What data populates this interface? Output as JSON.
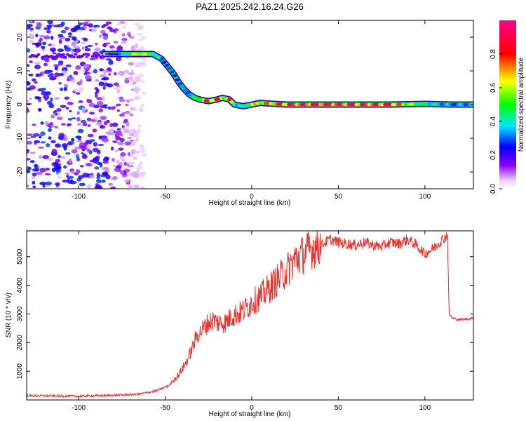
{
  "title": "PAZ1.2025.242.16.24.G26",
  "colors": {
    "snr_line": "#e8332f",
    "frame": "#000000",
    "background": "#ffffff"
  },
  "chart_data": [
    {
      "type": "heatmap",
      "name": "spectrogram",
      "xlabel": "Height of straight line (km)",
      "ylabel": "Frequency (Hz)",
      "xlim": [
        -130,
        128
      ],
      "ylim": [
        -25,
        25
      ],
      "xticks": [
        -100,
        -50,
        0,
        50,
        100
      ],
      "xtick_labels": [
        "-100",
        "-50",
        "0",
        "50",
        "100"
      ],
      "yticks": [
        -20,
        -10,
        0,
        10,
        20
      ],
      "ytick_labels": [
        "-20",
        "-10",
        "0",
        "10",
        "20"
      ],
      "colorbar": {
        "label": "Normalized spectral amplitude",
        "range": [
          0,
          1
        ],
        "ticks": [
          0.0,
          0.2,
          0.4,
          0.6,
          0.8
        ],
        "tick_labels": [
          "0.0",
          "0.2",
          "0.4",
          "0.6",
          "0.8"
        ],
        "colormap": "rainbow (magenta-blue-cyan-green-yellow-red-pink)"
      },
      "ridge": {
        "description": "dominant frequency ridge vs height",
        "x": [
          -85,
          -75,
          -65,
          -57,
          -52,
          -48,
          -45,
          -42,
          -39,
          -36,
          -33,
          -30,
          -25,
          -20,
          -17,
          -13,
          -10,
          -5,
          0,
          5,
          10,
          20,
          40,
          60,
          80,
          100,
          115,
          128
        ],
        "y": [
          15,
          15,
          15,
          15,
          13.5,
          11,
          9,
          6.5,
          4.5,
          3,
          2,
          1.5,
          1,
          1.5,
          2,
          1.5,
          0,
          -0.5,
          0,
          0.5,
          0.3,
          0,
          0,
          0,
          0,
          0.2,
          0,
          0
        ],
        "amplitude": [
          0.1,
          0.35,
          0.8,
          0.5,
          0.35,
          0.3,
          0.3,
          0.3,
          0.35,
          0.4,
          0.5,
          0.7,
          0.85,
          0.9,
          0.7,
          0.85,
          0.5,
          0.4,
          0.7,
          0.75,
          0.8,
          0.9,
          0.95,
          0.9,
          0.9,
          0.5,
          0.35,
          0.4
        ]
      },
      "noise_region": {
        "x_range": [
          -130,
          -70
        ],
        "y_range": [
          -25,
          25
        ],
        "amplitude_range": [
          0.05,
          0.3
        ],
        "note": "scattered low-amplitude blobs, with a persistent line near 14 Hz"
      }
    },
    {
      "type": "line",
      "name": "snr",
      "xlabel": "Height of straight line (km)",
      "ylabel": "SNR (10 * v/v)",
      "xlim": [
        -130,
        128
      ],
      "ylim": [
        0,
        5900
      ],
      "xticks": [
        -100,
        -50,
        0,
        50,
        100
      ],
      "xtick_labels": [
        "-100",
        "-50",
        "0",
        "50",
        "100"
      ],
      "yticks": [
        1000,
        2000,
        3000,
        4000,
        5000
      ],
      "ytick_labels": [
        "1000",
        "2000",
        "3000",
        "4000",
        "5000"
      ],
      "series": [
        {
          "name": "SNR",
          "x": [
            -130,
            -100,
            -80,
            -65,
            -55,
            -48,
            -42,
            -38,
            -35,
            -32,
            -28,
            -25,
            -22,
            -20,
            -15,
            -12,
            -8,
            -5,
            0,
            5,
            10,
            15,
            20,
            25,
            30,
            35,
            40,
            45,
            50,
            55,
            60,
            65,
            70,
            75,
            80,
            85,
            90,
            95,
            100,
            105,
            110,
            113,
            114,
            116,
            120,
            128
          ],
          "y": [
            150,
            130,
            160,
            200,
            320,
            500,
            900,
            1300,
            1700,
            2200,
            2500,
            2700,
            2800,
            2700,
            2700,
            2900,
            3000,
            3100,
            3400,
            3600,
            3900,
            4200,
            4500,
            4900,
            5100,
            5300,
            5400,
            5600,
            5500,
            5450,
            5400,
            5500,
            5400,
            5350,
            5500,
            5450,
            5600,
            5400,
            5100,
            5300,
            5600,
            5750,
            3000,
            2850,
            2800,
            2850
          ]
        }
      ]
    }
  ]
}
